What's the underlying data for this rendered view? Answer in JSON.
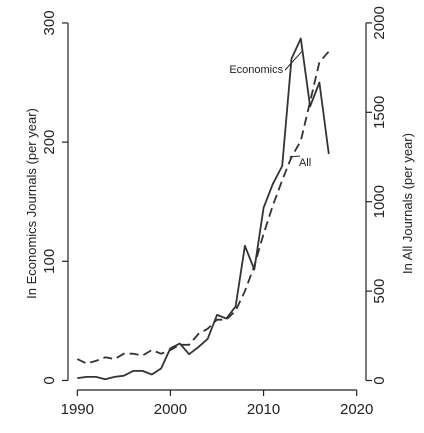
{
  "chart_data": {
    "type": "line",
    "title": "",
    "xlabel": "",
    "ylabel_left": "In Economics Journals (per year)",
    "ylabel_right": "In All Journals (per year)",
    "xlim": [
      1989,
      2021
    ],
    "ylim_left": [
      -8,
      305
    ],
    "ylim_right": [
      -53,
      2033
    ],
    "x_ticks": [
      1990,
      2000,
      2010,
      2020
    ],
    "y_left_ticks": [
      0,
      100,
      200,
      300
    ],
    "y_right_ticks": [
      0,
      500,
      1000,
      1500,
      2000
    ],
    "grid": false,
    "legend": "none",
    "series": [
      {
        "name": "Economics",
        "axis": "left",
        "style": "solid",
        "color": "#333333",
        "x": [
          1990,
          1991,
          1992,
          1993,
          1994,
          1995,
          1996,
          1997,
          1998,
          1999,
          2000,
          2001,
          2002,
          2003,
          2004,
          2005,
          2006,
          2007,
          2008,
          2009,
          2010,
          2011,
          2012,
          2013,
          2014,
          2015,
          2016,
          2017
        ],
        "y": [
          2,
          3,
          3,
          1,
          3,
          4,
          8,
          8,
          5,
          10,
          27,
          31,
          22,
          28,
          35,
          55,
          52,
          62,
          113,
          93,
          145,
          165,
          180,
          270,
          287,
          230,
          250,
          190
        ]
      },
      {
        "name": "All",
        "axis": "right",
        "style": "dashed",
        "color": "#333333",
        "x": [
          1990,
          1991,
          1992,
          1993,
          1994,
          1995,
          1996,
          1997,
          1998,
          1999,
          2000,
          2001,
          2002,
          2003,
          2004,
          2005,
          2006,
          2007,
          2008,
          2009,
          2010,
          2011,
          2012,
          2013,
          2014,
          2015,
          2016,
          2017
        ],
        "y": [
          120,
          95,
          110,
          130,
          120,
          150,
          150,
          140,
          170,
          150,
          170,
          200,
          200,
          260,
          290,
          340,
          340,
          390,
          500,
          640,
          820,
          980,
          1120,
          1250,
          1340,
          1560,
          1780,
          1840
        ]
      }
    ],
    "annotations": [
      {
        "text": "Economics",
        "x": 2012.1,
        "y": 258
      },
      {
        "text": "All",
        "x": 2013.8,
        "y": 1200
      }
    ]
  }
}
